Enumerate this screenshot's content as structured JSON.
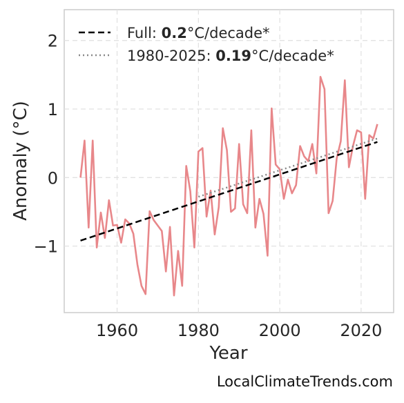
{
  "chart_data": {
    "type": "line",
    "xlabel": "Year",
    "ylabel": "Anomaly (°C)",
    "xlim": [
      1947,
      2028
    ],
    "ylim": [
      -1.97,
      2.45
    ],
    "grid": true,
    "legend_position": "top-left",
    "x_ticks": [
      {
        "value": 1960,
        "label": "1960"
      },
      {
        "value": 1980,
        "label": "1980"
      },
      {
        "value": 2000,
        "label": "2000"
      },
      {
        "value": 2020,
        "label": "2020"
      }
    ],
    "y_ticks": [
      {
        "value": -1,
        "label": "−1"
      },
      {
        "value": 0,
        "label": "0"
      },
      {
        "value": 1,
        "label": "1"
      },
      {
        "value": 2,
        "label": "2"
      }
    ],
    "series": [
      {
        "kind": "anomaly",
        "color": "#e8878a",
        "x": [
          1951,
          1952,
          1953,
          1954,
          1955,
          1956,
          1957,
          1958,
          1959,
          1960,
          1961,
          1962,
          1963,
          1964,
          1965,
          1966,
          1967,
          1968,
          1969,
          1970,
          1971,
          1972,
          1973,
          1974,
          1975,
          1976,
          1977,
          1978,
          1979,
          1980,
          1981,
          1982,
          1983,
          1984,
          1985,
          1986,
          1987,
          1988,
          1989,
          1990,
          1991,
          1992,
          1993,
          1994,
          1995,
          1996,
          1997,
          1998,
          1999,
          2000,
          2001,
          2002,
          2003,
          2004,
          2005,
          2006,
          2007,
          2008,
          2009,
          2010,
          2011,
          2012,
          2013,
          2014,
          2015,
          2016,
          2017,
          2018,
          2019,
          2020,
          2021,
          2022,
          2023,
          2024
        ],
        "y": [
          0.0,
          0.54,
          -0.73,
          0.54,
          -1.02,
          -0.51,
          -0.88,
          -0.33,
          -0.7,
          -0.69,
          -0.95,
          -0.61,
          -0.67,
          -0.82,
          -1.27,
          -1.58,
          -1.7,
          -0.49,
          -0.62,
          -0.7,
          -0.78,
          -1.37,
          -0.72,
          -1.72,
          -1.07,
          -1.58,
          0.17,
          -0.2,
          -1.02,
          0.38,
          0.43,
          -0.57,
          -0.19,
          -0.83,
          -0.43,
          0.72,
          0.4,
          -0.5,
          -0.45,
          0.49,
          -0.39,
          -0.52,
          0.69,
          -0.73,
          -0.31,
          -0.53,
          -1.14,
          1.01,
          0.19,
          0.12,
          -0.31,
          -0.03,
          -0.23,
          -0.11,
          0.46,
          0.31,
          0.24,
          0.49,
          0.06,
          1.47,
          1.29,
          -0.52,
          -0.34,
          0.28,
          0.53,
          1.42,
          0.15,
          0.46,
          0.69,
          0.66,
          -0.31,
          0.62,
          0.57,
          0.78
        ]
      },
      {
        "kind": "trend-full",
        "color": "#000000",
        "x": [
          1951,
          2024
        ],
        "y": [
          -0.92,
          0.52
        ]
      },
      {
        "kind": "trend-recent",
        "color": "#888888",
        "x": [
          1980,
          2024
        ],
        "y": [
          -0.28,
          0.57
        ]
      }
    ],
    "legend": [
      {
        "prefix": "Full: ",
        "bold": "0.2",
        "suffix": "°C/decade*",
        "style": "dashed",
        "color": "#000000"
      },
      {
        "prefix": "1980-2025: ",
        "bold": "0.19",
        "suffix": "°C/decade*",
        "style": "dotted",
        "color": "#888888"
      }
    ]
  },
  "source_credit": "LocalClimateTrends.com"
}
